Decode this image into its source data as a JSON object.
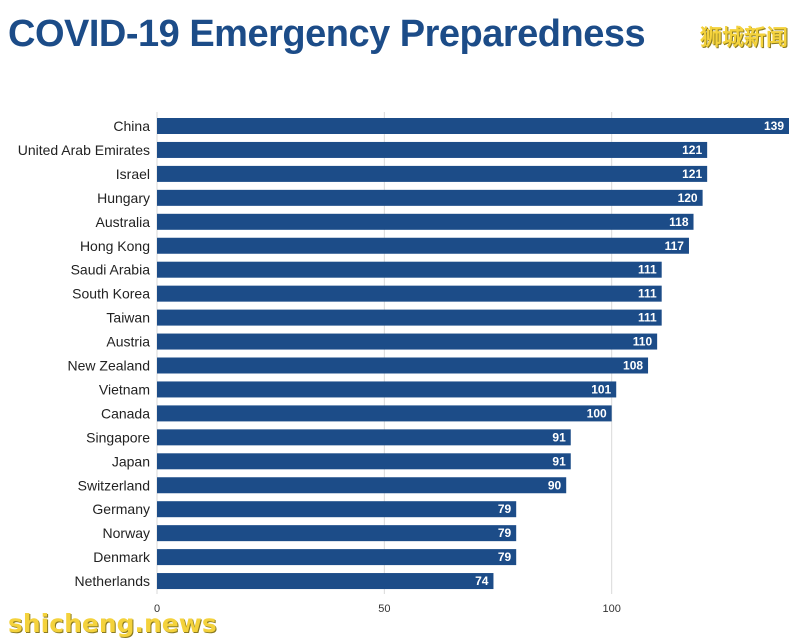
{
  "header": {
    "title": "COVID-19 Emergency Preparedness",
    "brand_top": "狮城新闻"
  },
  "footer": {
    "brand_bottom": "shicheng.news"
  },
  "colors": {
    "bar": "#1c4c88",
    "grid": "#d9d9d9",
    "title": "#1c4c88",
    "value_text": "#ffffff"
  },
  "chart_data": {
    "type": "bar",
    "orientation": "horizontal",
    "categories": [
      "China",
      "United Arab Emirates",
      "Israel",
      "Hungary",
      "Australia",
      "Hong Kong",
      "Saudi Arabia",
      "South Korea",
      "Taiwan",
      "Austria",
      "New Zealand",
      "Vietnam",
      "Canada",
      "Singapore",
      "Japan",
      "Switzerland",
      "Germany",
      "Norway",
      "Denmark",
      "Netherlands"
    ],
    "values": [
      139,
      121,
      121,
      120,
      118,
      117,
      111,
      111,
      111,
      110,
      108,
      101,
      100,
      91,
      91,
      90,
      79,
      79,
      79,
      74
    ],
    "xticks": [
      0,
      50,
      100
    ],
    "xlim": [
      0,
      139
    ],
    "grid": true,
    "title": "COVID-19 Emergency Preparedness",
    "xlabel": "",
    "ylabel": ""
  }
}
